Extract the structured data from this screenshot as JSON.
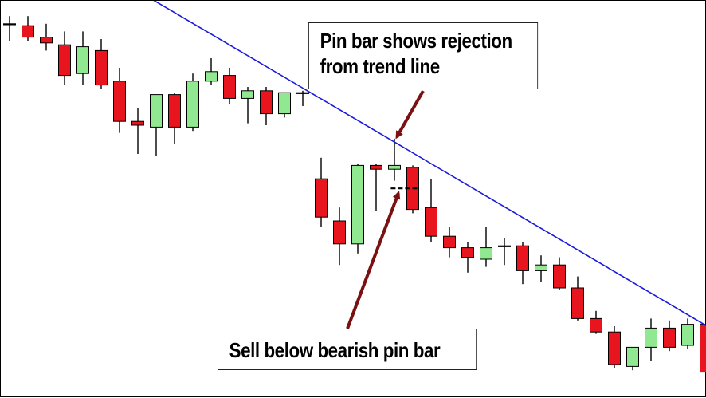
{
  "chart_data": {
    "type": "candlestick",
    "title": "",
    "xlabel": "",
    "ylabel": "",
    "grid": false,
    "ylim": [
      0,
      100
    ],
    "colors": {
      "bullish": "#90e890",
      "bearish": "#e8141e",
      "wick": "#000000",
      "trendline": "#1a1adc",
      "arrow": "#7a1010",
      "level": "#000000"
    },
    "candles": [
      {
        "o": 94,
        "h": 96,
        "l": 89.5,
        "c": 94
      },
      {
        "o": 93.5,
        "h": 96,
        "l": 89.5,
        "c": 90.5
      },
      {
        "o": 90.5,
        "h": 94,
        "l": 87,
        "c": 89
      },
      {
        "o": 88.5,
        "h": 92,
        "l": 78,
        "c": 80.5
      },
      {
        "o": 81,
        "h": 92,
        "l": 78,
        "c": 88
      },
      {
        "o": 87,
        "h": 90,
        "l": 77,
        "c": 78
      },
      {
        "o": 79,
        "h": 82.5,
        "l": 65.5,
        "c": 68.5
      },
      {
        "o": 68.5,
        "h": 72,
        "l": 60,
        "c": 67.5
      },
      {
        "o": 67,
        "h": 75.5,
        "l": 59.5,
        "c": 75.5
      },
      {
        "o": 75.5,
        "h": 76,
        "l": 62.5,
        "c": 67
      },
      {
        "o": 67,
        "h": 81,
        "l": 66,
        "c": 79
      },
      {
        "o": 79,
        "h": 85,
        "l": 78,
        "c": 81.5
      },
      {
        "o": 80.5,
        "h": 82.5,
        "l": 73,
        "c": 74.5
      },
      {
        "o": 74.5,
        "h": 77.5,
        "l": 68,
        "c": 76.5
      },
      {
        "o": 76.5,
        "h": 77.5,
        "l": 67.5,
        "c": 70.5
      },
      {
        "o": 70.5,
        "h": 76,
        "l": 69.5,
        "c": 76
      },
      {
        "o": 76,
        "h": 76.5,
        "l": 72.5,
        "c": 76
      },
      {
        "o": 53.5,
        "h": 59,
        "l": 41,
        "c": 43.5
      },
      {
        "o": 42.5,
        "h": 46,
        "l": 31,
        "c": 36.5
      },
      {
        "o": 36.5,
        "h": 57.5,
        "l": 34,
        "c": 57
      },
      {
        "o": 57,
        "h": 57.5,
        "l": 45,
        "c": 56
      },
      {
        "o": 56,
        "h": 64,
        "l": 53,
        "c": 57
      },
      {
        "o": 56.5,
        "h": 57,
        "l": 44.5,
        "c": 45.5
      },
      {
        "o": 46,
        "h": 53.5,
        "l": 37,
        "c": 38.5
      },
      {
        "o": 38.5,
        "h": 41,
        "l": 33,
        "c": 35.5
      },
      {
        "o": 35.5,
        "h": 37,
        "l": 29,
        "c": 33
      },
      {
        "o": 32.5,
        "h": 41,
        "l": 30.5,
        "c": 35.5
      },
      {
        "o": 36,
        "h": 38,
        "l": 31,
        "c": 36
      },
      {
        "o": 36,
        "h": 37,
        "l": 26,
        "c": 29.5
      },
      {
        "o": 29.5,
        "h": 33.5,
        "l": 26.5,
        "c": 31
      },
      {
        "o": 31,
        "h": 33,
        "l": 24.5,
        "c": 25
      },
      {
        "o": 25,
        "h": 28,
        "l": 16.5,
        "c": 17
      },
      {
        "o": 17,
        "h": 19,
        "l": 13,
        "c": 13.5
      },
      {
        "o": 13.5,
        "h": 15,
        "l": 4,
        "c": 5
      },
      {
        "o": 4.5,
        "h": 9.5,
        "l": 3.5,
        "c": 9.5
      },
      {
        "o": 9.5,
        "h": 17,
        "l": 6,
        "c": 14.5
      },
      {
        "o": 14.5,
        "h": 16.5,
        "l": 8.5,
        "c": 9.5
      },
      {
        "o": 10,
        "h": 17,
        "l": 9,
        "c": 15.5
      },
      {
        "o": 15.5,
        "h": 16,
        "l": 2,
        "c": 3
      }
    ],
    "trendline": {
      "from": {
        "i": 7.2,
        "y": 102
      },
      "to": {
        "i": 38.6,
        "y": 13.5
      }
    },
    "sell_level": {
      "from_i": 20.8,
      "to_i": 22.3,
      "y": 51
    },
    "annotations": [
      {
        "id": "top",
        "lines": [
          "Pin bar shows rejection",
          "from trend line"
        ]
      },
      {
        "id": "bottom",
        "lines": [
          "Sell below bearish pin bar"
        ]
      }
    ]
  }
}
